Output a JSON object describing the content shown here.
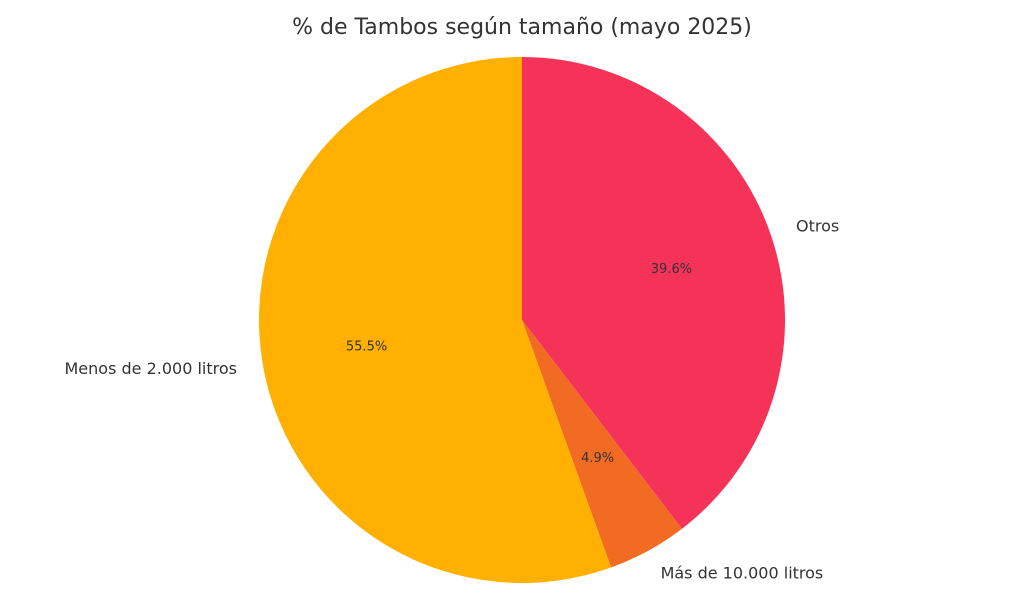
{
  "chart_data": {
    "type": "pie",
    "title": "% de Tambos según tamaño (mayo 2025)",
    "slices": [
      {
        "label": "Otros",
        "value": 39.6,
        "pct_label": "39.6%",
        "color": "#f53358"
      },
      {
        "label": "Más de 10.000 litros",
        "value": 4.9,
        "pct_label": "4.9%",
        "color": "#f26b22"
      },
      {
        "label": "Menos de 2.000 litros",
        "value": 55.5,
        "pct_label": "55.5%",
        "color": "#ffb000"
      }
    ],
    "start_angle": "top",
    "direction": "clockwise",
    "legend": "none"
  }
}
